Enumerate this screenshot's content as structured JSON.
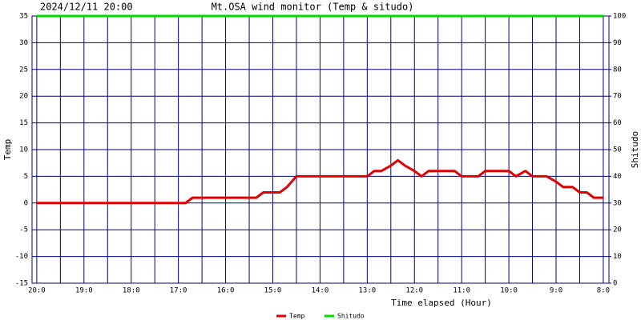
{
  "chart_data": {
    "type": "line",
    "title": "Mt.OSA wind monitor (Temp & situdo)",
    "subtitle": "2024/12/11 20:00",
    "x_label": "Time elapsed (Hour)",
    "y_label": "Temp",
    "y2_label": "Shitudo",
    "x": [
      0,
      3.15,
      3.3,
      4.65,
      4.8,
      5.15,
      5.3,
      5.5,
      7.0,
      7.15,
      7.3,
      7.5,
      7.65,
      7.8,
      8.0,
      8.15,
      8.3,
      8.85,
      9.0,
      9.35,
      9.5,
      10.0,
      10.15,
      10.35,
      10.5,
      10.8,
      11.0,
      11.15,
      11.35,
      11.5,
      11.65,
      11.8,
      12.0
    ],
    "series": [
      {
        "name": "Temp",
        "color": "#e00000",
        "values": [
          0,
          0,
          1,
          1,
          2,
          2,
          3,
          5,
          5,
          6,
          6,
          7,
          8,
          7,
          6,
          5,
          6,
          6,
          5,
          5,
          6,
          6,
          5,
          6,
          5,
          5,
          4,
          3,
          3,
          2,
          2,
          1,
          1
        ]
      },
      {
        "name": "Shitudo",
        "color": "#00e000",
        "axis": "y2",
        "values": [
          100,
          100,
          100,
          100,
          100,
          100,
          100,
          100,
          100,
          100,
          100,
          100,
          100,
          100,
          100,
          100,
          100,
          100,
          100,
          100,
          100,
          100,
          100,
          100,
          100,
          100,
          100,
          100,
          100,
          100,
          100,
          100,
          100
        ]
      }
    ],
    "xlim": [
      -0.1,
      12.12
    ],
    "xticks": [
      {
        "value": 0,
        "label": "20:0"
      },
      {
        "value": 1,
        "label": "19:0"
      },
      {
        "value": 2,
        "label": "18:0"
      },
      {
        "value": 3,
        "label": "17:0"
      },
      {
        "value": 4,
        "label": "16:0"
      },
      {
        "value": 5,
        "label": "15:0"
      },
      {
        "value": 6,
        "label": "14:0"
      },
      {
        "value": 7,
        "label": "13:0"
      },
      {
        "value": 8,
        "label": "12:0"
      },
      {
        "value": 9,
        "label": "11:0"
      },
      {
        "value": 10,
        "label": "10:0"
      },
      {
        "value": 11,
        "label": "9:0"
      },
      {
        "value": 12,
        "label": "8:0"
      }
    ],
    "x_minor_ticks": [
      0.5,
      1.5,
      2.5,
      3.5,
      4.5,
      5.5,
      6.5,
      7.5,
      8.5,
      9.5,
      10.5,
      11.5
    ],
    "ylim": [
      -15,
      35
    ],
    "yticks": [
      -15,
      -10,
      -5,
      0,
      5,
      10,
      15,
      20,
      25,
      30,
      35
    ],
    "y2lim": [
      0,
      100
    ],
    "y2ticks": [
      0,
      10,
      20,
      30,
      40,
      50,
      60,
      70,
      80,
      90,
      100
    ],
    "grid": true,
    "grid_color": "#000080",
    "legend": "bottom"
  }
}
